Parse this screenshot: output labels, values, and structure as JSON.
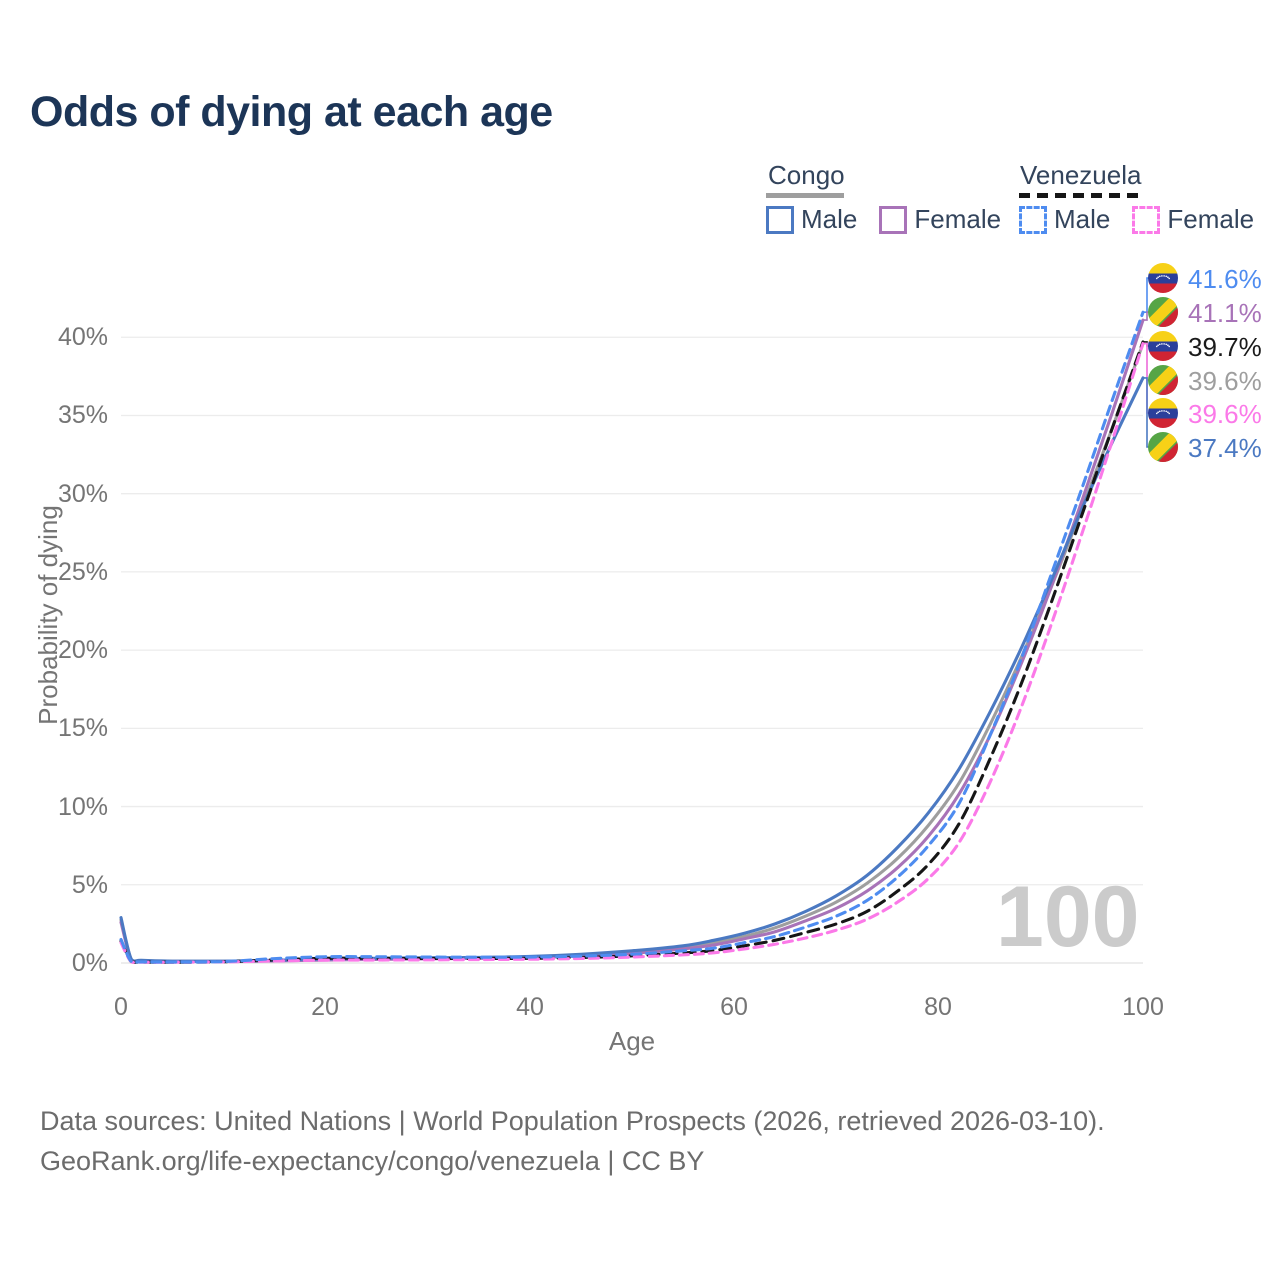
{
  "title": "Odds of dying at each age",
  "watermark": "100",
  "legend": {
    "groups": [
      {
        "label": "Congo",
        "line_color": "#9e9e9e",
        "line_style": "solid",
        "items": [
          {
            "label": "Male",
            "color": "#4b79c2",
            "dashed": false
          },
          {
            "label": "Female",
            "color": "#a873b8",
            "dashed": false
          }
        ]
      },
      {
        "label": "Venezuela",
        "line_color": "#161616",
        "line_style": "dashed",
        "items": [
          {
            "label": "Male",
            "color": "#4e8cf0",
            "dashed": true
          },
          {
            "label": "Female",
            "color": "#fb79e8",
            "dashed": true
          }
        ]
      }
    ]
  },
  "chart_data": {
    "type": "line",
    "title": "Odds of dying at each age",
    "xlabel": "Age",
    "ylabel": "Probability of dying",
    "xticks": [
      "0",
      "20",
      "40",
      "60",
      "80",
      "100"
    ],
    "yticks": [
      "0%",
      "5%",
      "10%",
      "15%",
      "20%",
      "25%",
      "30%",
      "35%",
      "40%"
    ],
    "xlim": [
      0,
      100
    ],
    "ylim": [
      0,
      42
    ],
    "grid": true,
    "x": [
      0,
      1,
      2,
      5,
      10,
      15,
      20,
      25,
      30,
      35,
      40,
      45,
      50,
      55,
      58,
      61,
      64,
      67,
      70,
      73,
      76,
      79,
      82,
      85,
      88,
      91,
      94,
      97,
      100
    ],
    "series": [
      {
        "name": "Congo",
        "color": "#9e9e9e",
        "dashed": false,
        "values": [
          2.75,
          0.23,
          0.15,
          0.11,
          0.11,
          0.15,
          0.23,
          0.27,
          0.3,
          0.33,
          0.38,
          0.5,
          0.7,
          1.0,
          1.3,
          1.7,
          2.25,
          3.0,
          3.9,
          5.1,
          6.7,
          8.8,
          11.5,
          15.2,
          19.4,
          24.0,
          29.0,
          34.2,
          39.6
        ]
      },
      {
        "name": "Congo Female",
        "color": "#a873b8",
        "dashed": false,
        "values": [
          2.6,
          0.21,
          0.14,
          0.1,
          0.1,
          0.13,
          0.19,
          0.23,
          0.27,
          0.3,
          0.34,
          0.45,
          0.62,
          0.9,
          1.15,
          1.55,
          2.0,
          2.7,
          3.5,
          4.6,
          6.1,
          8.1,
          10.8,
          14.5,
          19.0,
          24.0,
          29.5,
          35.2,
          41.1
        ]
      },
      {
        "name": "Congo Male",
        "color": "#4b79c2",
        "dashed": false,
        "values": [
          2.9,
          0.25,
          0.17,
          0.12,
          0.12,
          0.17,
          0.26,
          0.3,
          0.33,
          0.36,
          0.42,
          0.56,
          0.78,
          1.1,
          1.45,
          1.9,
          2.5,
          3.3,
          4.3,
          5.6,
          7.4,
          9.6,
          12.4,
          16.0,
          20.0,
          24.4,
          29.0,
          33.3,
          37.4
        ]
      },
      {
        "name": "Venezuela",
        "color": "#161616",
        "dashed": true,
        "values": [
          1.4,
          0.09,
          0.06,
          0.05,
          0.08,
          0.2,
          0.3,
          0.3,
          0.29,
          0.29,
          0.3,
          0.35,
          0.46,
          0.64,
          0.8,
          1.1,
          1.45,
          1.95,
          2.5,
          3.3,
          4.6,
          6.3,
          8.9,
          13.0,
          17.7,
          23.0,
          28.6,
          34.2,
          39.7
        ]
      },
      {
        "name": "Venezuela Female",
        "color": "#fb79e8",
        "dashed": true,
        "values": [
          1.3,
          0.08,
          0.05,
          0.05,
          0.07,
          0.13,
          0.18,
          0.19,
          0.2,
          0.22,
          0.24,
          0.29,
          0.38,
          0.52,
          0.65,
          0.9,
          1.2,
          1.6,
          2.1,
          2.8,
          3.9,
          5.4,
          7.7,
          11.5,
          16.2,
          21.6,
          27.4,
          33.4,
          39.6
        ]
      },
      {
        "name": "Venezuela Male",
        "color": "#4e8cf0",
        "dashed": true,
        "values": [
          1.5,
          0.1,
          0.07,
          0.06,
          0.09,
          0.28,
          0.4,
          0.4,
          0.38,
          0.37,
          0.38,
          0.44,
          0.56,
          0.78,
          0.95,
          1.3,
          1.7,
          2.3,
          3.0,
          4.0,
          5.5,
          7.5,
          10.2,
          14.5,
          19.3,
          24.8,
          30.3,
          36.0,
          41.6
        ]
      }
    ]
  },
  "end_labels": [
    {
      "value": "41.6%",
      "flag": "venezuela",
      "series": "Venezuela Male",
      "color": "#4e8cf0"
    },
    {
      "value": "41.1%",
      "flag": "congo",
      "series": "Congo Female",
      "color": "#a873b8"
    },
    {
      "value": "39.7%",
      "flag": "venezuela",
      "series": "Venezuela",
      "color": "#1a1a1a"
    },
    {
      "value": "39.6%",
      "flag": "congo",
      "series": "Congo",
      "color": "#9e9e9e"
    },
    {
      "value": "39.6%",
      "flag": "venezuela",
      "series": "Venezuela Female",
      "color": "#fb79e8"
    },
    {
      "value": "37.4%",
      "flag": "congo",
      "series": "Congo Male",
      "color": "#4b79c2"
    }
  ],
  "footer": {
    "line1": "Data sources: United Nations | World Population Prospects (2026, retrieved 2026-03-10).",
    "line2": "GeoRank.org/life-expectancy/congo/venezuela | CC BY"
  }
}
